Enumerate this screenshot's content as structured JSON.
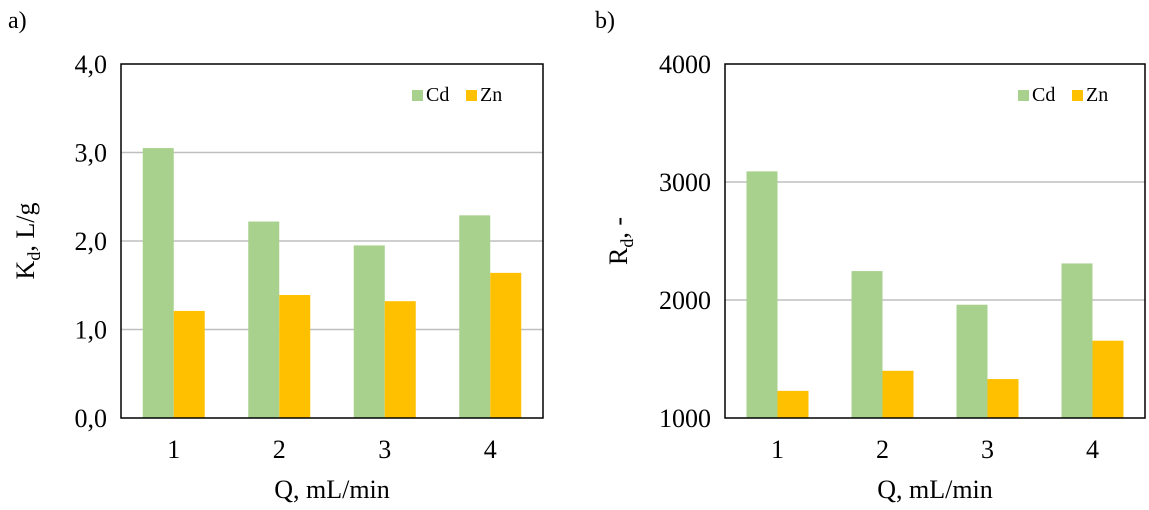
{
  "chart_data": [
    {
      "type": "bar",
      "panel_label": "a)",
      "categories": [
        "1",
        "2",
        "3",
        "4"
      ],
      "series": [
        {
          "name": "Cd",
          "values": [
            3.05,
            2.22,
            1.95,
            2.29
          ]
        },
        {
          "name": "Zn",
          "values": [
            1.21,
            1.39,
            1.32,
            1.64
          ]
        }
      ],
      "xlabel": "Q, mL/min",
      "ylabel_main": "K",
      "ylabel_sub": "d",
      "ylabel_rest": ", L/g",
      "ylim": [
        0,
        4
      ],
      "yticks": [
        "0,0",
        "1,0",
        "2,0",
        "3,0",
        "4,0"
      ],
      "grid": true,
      "legend_position": "top-right"
    },
    {
      "type": "bar",
      "panel_label": "b)",
      "categories": [
        "1",
        "2",
        "3",
        "4"
      ],
      "series": [
        {
          "name": "Cd",
          "values": [
            3090,
            2245,
            1960,
            2310
          ]
        },
        {
          "name": "Zn",
          "values": [
            1230,
            1400,
            1330,
            1655
          ]
        }
      ],
      "xlabel": "Q, mL/min",
      "ylabel_main": "R",
      "ylabel_sub": "d",
      "ylabel_rest": ", -",
      "ylim": [
        1000,
        4000
      ],
      "yticks": [
        "1000",
        "2000",
        "3000",
        "4000"
      ],
      "grid": true,
      "legend_position": "top-right"
    }
  ],
  "colors": {
    "Cd": "#A9D18E",
    "Zn": "#FFC000",
    "grid": "#BFBFBF",
    "frame": "#000000"
  }
}
